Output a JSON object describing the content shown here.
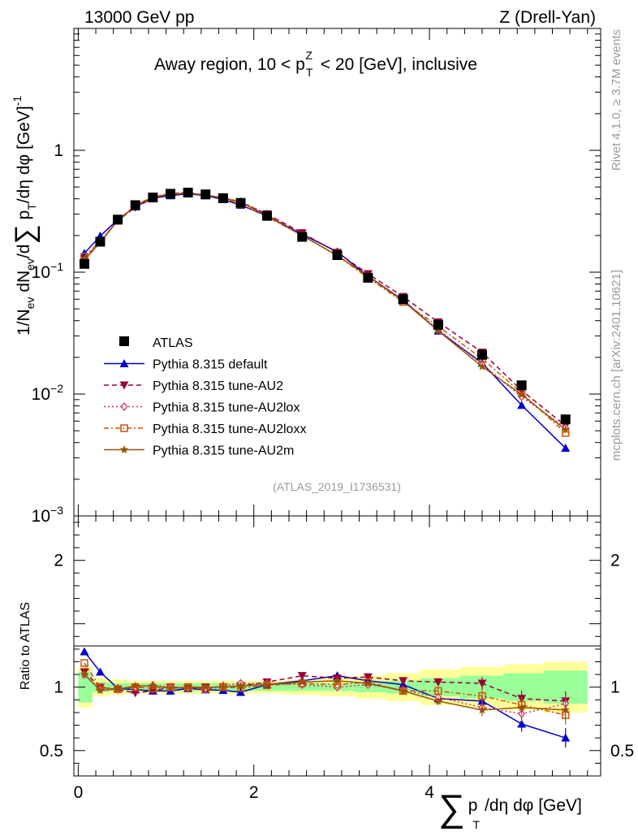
{
  "header": {
    "left": "13000 GeV pp",
    "right": "Z (Drell-Yan)"
  },
  "side": {
    "rivet": "Rivet 4.1.0, ≥ 3.7M events",
    "mcplots": "mcplots.cern.ch [arXiv:2401.10621]"
  },
  "chart_data": {
    "type": "line",
    "title": "Away region, 10 < p_T^Z < 20 [GeV], inclusive",
    "title_parts": {
      "pre": "Away region, 10 < p",
      "sup": "Z",
      "sub": "T",
      "post": " < 20 [GeV], inclusive"
    },
    "watermark": "(ATLAS_2019_I1736531)",
    "xlabel": "∑ p_T /dη dφ [GeV]",
    "xlabel_parts": {
      "sum": "∑",
      "p": "p",
      "sub": "T",
      "rest": "/dη dφ [GeV]"
    },
    "ylabel": "1/N_ev dN_ev/d∑ p_T /dη dφ [GeV]^-1",
    "ylabel_parts": {
      "a": "1/N",
      "a_sub": "ev",
      "b": " dN",
      "b_sub": "ev",
      "c": "/d",
      "sum": "∑",
      "p": " p",
      "p_sub": "T",
      "d": "/dη dφ  [GeV]",
      "sup": "-1"
    },
    "ratio_ylabel": "Ratio to ATLAS",
    "xlim": [
      -0.05,
      5.95
    ],
    "ylim": [
      0.001,
      10
    ],
    "ratio_ylim": [
      0.3,
      2.35
    ],
    "x_ticks": [
      0,
      2,
      4
    ],
    "x_tick_labels": [
      "0",
      "2",
      "4"
    ],
    "y_ticks": [
      {
        "value": 1,
        "base": "1",
        "exp": ""
      },
      {
        "value": 0.1,
        "base": "10",
        "exp": "−1"
      },
      {
        "value": 0.01,
        "base": "10",
        "exp": "−2"
      },
      {
        "value": 0.001,
        "base": "10",
        "exp": "−3"
      }
    ],
    "ratio_ticks": [
      {
        "value": 2,
        "label": "2"
      },
      {
        "value": 1,
        "label": "1"
      },
      {
        "value": 0.5,
        "label": "0.5"
      }
    ],
    "x": [
      0.07,
      0.25,
      0.45,
      0.65,
      0.85,
      1.05,
      1.25,
      1.45,
      1.65,
      1.85,
      2.15,
      2.55,
      2.95,
      3.3,
      3.7,
      4.1,
      4.6,
      5.05,
      5.55
    ],
    "data": {
      "name": "ATLAS",
      "color": "#000000",
      "values": [
        0.117,
        0.178,
        0.27,
        0.355,
        0.41,
        0.44,
        0.45,
        0.435,
        0.405,
        0.37,
        0.29,
        0.195,
        0.138,
        0.09,
        0.06,
        0.037,
        0.021,
        0.0118,
        0.0062
      ]
    },
    "series": [
      {
        "name": "Pythia 8.315 default",
        "color": "#0000cc",
        "dash": "",
        "marker": "triangle-up",
        "values": [
          0.143,
          0.198,
          0.27,
          0.345,
          0.405,
          0.425,
          0.44,
          0.425,
          0.395,
          0.355,
          0.29,
          0.205,
          0.147,
          0.093,
          0.059,
          0.033,
          0.018,
          0.0081,
          0.0036
        ],
        "ratio": [
          1.28,
          1.12,
          0.99,
          0.98,
          0.97,
          0.97,
          0.99,
          0.98,
          0.975,
          0.96,
          1.02,
          1.05,
          1.09,
          1.05,
          1.02,
          0.91,
          0.89,
          0.71,
          0.6
        ]
      },
      {
        "name": "Pythia 8.315 tune-AU2",
        "color": "#990033",
        "dash": "6,4",
        "marker": "triangle-down",
        "values": [
          0.128,
          0.178,
          0.265,
          0.34,
          0.405,
          0.435,
          0.445,
          0.43,
          0.405,
          0.375,
          0.3,
          0.21,
          0.145,
          0.097,
          0.063,
          0.039,
          0.022,
          0.0107,
          0.0055
        ],
        "ratio": [
          1.12,
          1.0,
          0.98,
          0.955,
          0.97,
          1.0,
          0.99,
          1.0,
          1.0,
          1.01,
          1.04,
          1.09,
          1.07,
          1.08,
          1.05,
          1.04,
          1.03,
          0.91,
          0.89
        ]
      },
      {
        "name": "Pythia 8.315 tune-AU2lox",
        "color": "#cc3366",
        "dash": "2,3",
        "marker": "diamond",
        "values": [
          0.126,
          0.175,
          0.265,
          0.35,
          0.415,
          0.44,
          0.445,
          0.43,
          0.41,
          0.38,
          0.3,
          0.2,
          0.137,
          0.092,
          0.059,
          0.034,
          0.0175,
          0.0095,
          0.0053
        ],
        "ratio": [
          1.1,
          0.985,
          0.985,
          1.0,
          1.015,
          1.0,
          0.99,
          0.99,
          1.01,
          1.03,
          1.03,
          1.02,
          1.0,
          1.02,
          0.98,
          0.92,
          0.84,
          0.79,
          0.87
        ]
      },
      {
        "name": "Pythia 8.315 tune-AU2loxx",
        "color": "#cc5500",
        "dash": "6,3,2,3",
        "marker": "square-open",
        "values": [
          0.134,
          0.18,
          0.265,
          0.355,
          0.415,
          0.445,
          0.45,
          0.43,
          0.405,
          0.36,
          0.285,
          0.2,
          0.137,
          0.09,
          0.057,
          0.036,
          0.0195,
          0.0102,
          0.0048
        ],
        "ratio": [
          1.19,
          1.0,
          0.985,
          1.0,
          0.99,
          1.0,
          1.0,
          0.985,
          1.0,
          0.995,
          1.015,
          1.03,
          1.02,
          1.04,
          0.97,
          0.97,
          0.93,
          0.86,
          0.78
        ]
      },
      {
        "name": "Pythia 8.315 tune-AU2m",
        "color": "#99530a",
        "dash": "",
        "marker": "star",
        "values": [
          0.126,
          0.176,
          0.265,
          0.35,
          0.415,
          0.435,
          0.445,
          0.43,
          0.405,
          0.375,
          0.29,
          0.2,
          0.137,
          0.093,
          0.058,
          0.033,
          0.0168,
          0.0099,
          0.0051
        ],
        "ratio": [
          1.1,
          0.975,
          0.985,
          1.01,
          1.01,
          0.99,
          1.0,
          1.0,
          1.0,
          1.01,
          1.02,
          1.04,
          1.05,
          1.03,
          0.97,
          0.89,
          0.82,
          0.84,
          0.82
        ]
      }
    ],
    "band_edges": [
      0,
      0.16,
      0.35,
      0.55,
      0.75,
      0.95,
      1.15,
      1.35,
      1.55,
      1.75,
      1.95,
      2.35,
      2.75,
      3.15,
      3.5,
      3.9,
      4.35,
      4.85,
      5.3,
      5.8
    ],
    "band_green": [
      0.12,
      0.04,
      0.03,
      0.03,
      0.03,
      0.03,
      0.03,
      0.03,
      0.03,
      0.03,
      0.03,
      0.03,
      0.03,
      0.04,
      0.05,
      0.07,
      0.09,
      0.11,
      0.13
    ],
    "band_yellow": [
      0.16,
      0.07,
      0.06,
      0.05,
      0.05,
      0.05,
      0.05,
      0.05,
      0.05,
      0.05,
      0.05,
      0.06,
      0.07,
      0.09,
      0.11,
      0.14,
      0.16,
      0.18,
      0.2
    ]
  }
}
